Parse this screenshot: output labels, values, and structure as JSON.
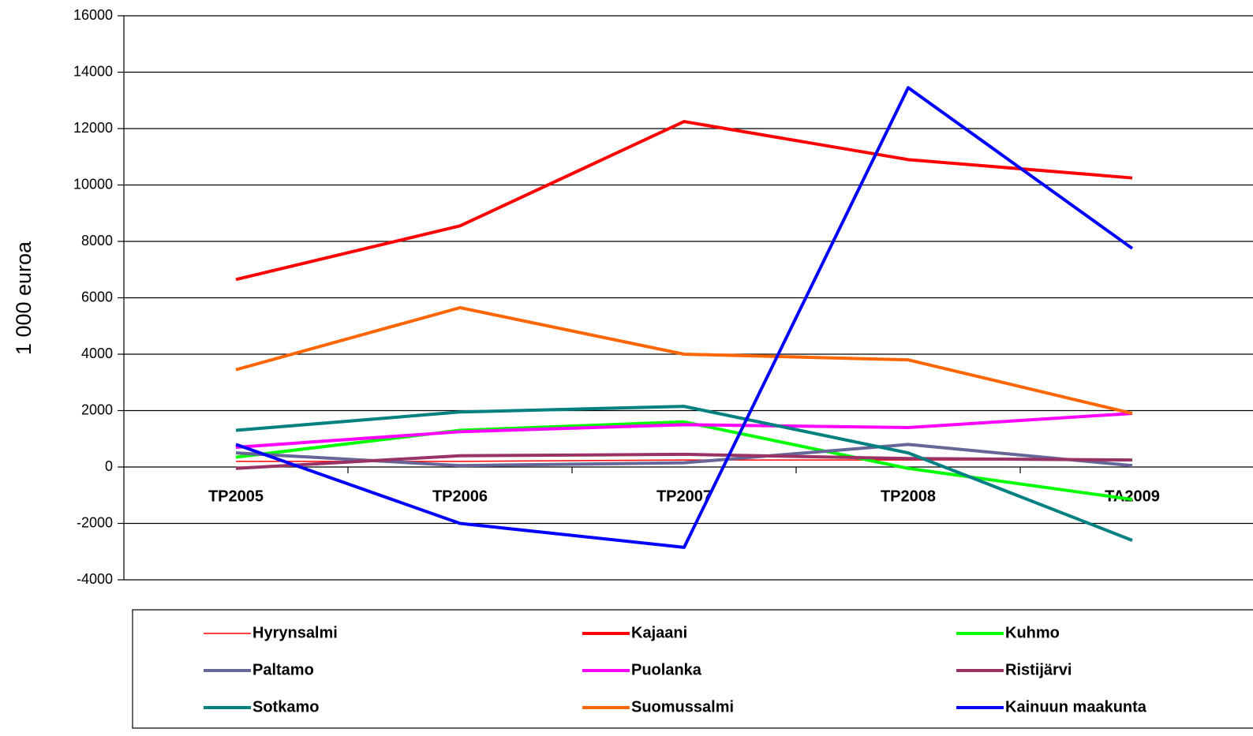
{
  "chart_data": {
    "type": "line",
    "y_label": "1 000 euroa",
    "categories": [
      "TP2005",
      "TP2006",
      "TP2007",
      "TP2008",
      "TA2009"
    ],
    "ylim": [
      -4000,
      16000
    ],
    "yticks": [
      -4000,
      -2000,
      0,
      2000,
      4000,
      6000,
      8000,
      10000,
      12000,
      14000,
      16000
    ],
    "grid": true,
    "legend": "bottom",
    "series": [
      {
        "name": "Hyrynsalmi",
        "color": "#ff0000",
        "width": 1.5,
        "values": [
          200,
          200,
          250,
          250,
          250
        ]
      },
      {
        "name": "Kajaani",
        "color": "#ff0000",
        "width": 4,
        "values": [
          6650,
          8550,
          12250,
          10900,
          10250
        ]
      },
      {
        "name": "Kuhmo",
        "color": "#00ff00",
        "width": 4,
        "values": [
          350,
          1300,
          1600,
          -50,
          -1150
        ]
      },
      {
        "name": "Paltamo",
        "color": "#666699",
        "width": 4,
        "values": [
          500,
          50,
          150,
          800,
          50
        ]
      },
      {
        "name": "Puolanka",
        "color": "#ff00ff",
        "width": 4,
        "values": [
          700,
          1250,
          1500,
          1400,
          1900
        ]
      },
      {
        "name": "Ristijärvi",
        "color": "#993366",
        "width": 4,
        "values": [
          -50,
          400,
          450,
          300,
          250
        ]
      },
      {
        "name": "Sotkamo",
        "color": "#008080",
        "width": 4,
        "values": [
          1300,
          1950,
          2150,
          500,
          -2600
        ]
      },
      {
        "name": "Suomussalmi",
        "color": "#ff6600",
        "width": 4,
        "values": [
          3450,
          5650,
          4000,
          3800,
          1900
        ]
      },
      {
        "name": "Kainuun maakunta",
        "color": "#0000ff",
        "width": 4,
        "values": [
          800,
          -2000,
          -2850,
          13450,
          7750
        ]
      }
    ]
  }
}
